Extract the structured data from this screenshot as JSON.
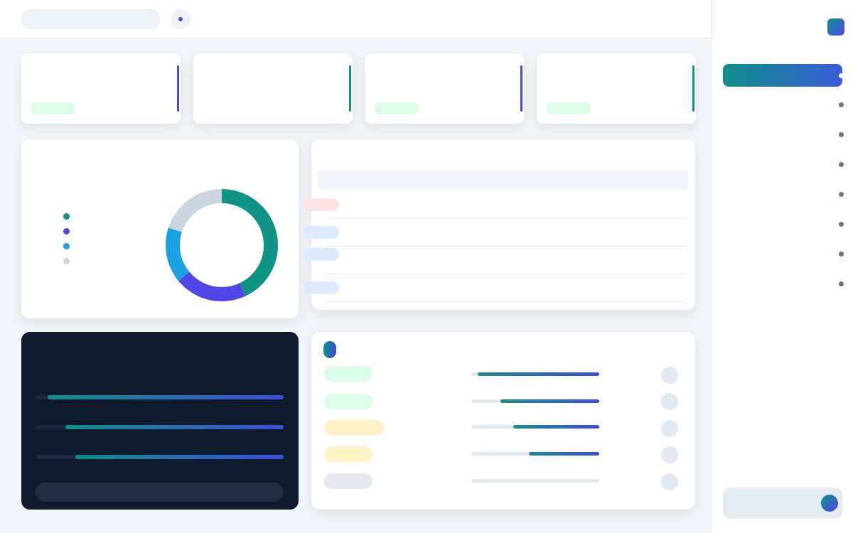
{
  "search": {
    "placeholder": ""
  },
  "sidebar": {
    "brand": "",
    "items": [
      {
        "label": ""
      },
      {
        "label": ""
      },
      {
        "label": ""
      },
      {
        "label": ""
      },
      {
        "label": ""
      },
      {
        "label": ""
      },
      {
        "label": ""
      },
      {
        "label": ""
      }
    ],
    "user": {
      "name": "",
      "role": ""
    }
  },
  "stats": [
    {
      "label": "",
      "value": "",
      "pill": ""
    },
    {
      "label": "",
      "value": "",
      "pill": ""
    },
    {
      "label": "",
      "value": "",
      "pill": ""
    },
    {
      "label": "",
      "value": "",
      "pill": ""
    }
  ],
  "donut": {
    "title": "",
    "center_value": "",
    "center_label": "",
    "legend": [
      {
        "value": "",
        "name": "",
        "color": "#0e9384"
      },
      {
        "value": "",
        "name": "",
        "color": "#4f46e5"
      },
      {
        "value": "",
        "name": "",
        "color": "#1ba0e2"
      },
      {
        "value": "",
        "name": "",
        "color": "#cbd5e1"
      }
    ],
    "segments": [
      {
        "color": "#0e9384",
        "fraction": 0.43
      },
      {
        "color": "#4f46e5",
        "fraction": 0.21
      },
      {
        "color": "#1ba0e2",
        "fraction": 0.16
      },
      {
        "color": "#cbd5e1",
        "fraction": 0.2
      }
    ]
  },
  "table": {
    "title": "",
    "column": "",
    "rows": [
      {
        "tag": "",
        "a": "",
        "b": "",
        "c": ""
      },
      {
        "tag": "",
        "a": "",
        "b": "",
        "c": ""
      },
      {
        "tag": "",
        "a": "",
        "b": "",
        "c": ""
      },
      {
        "tag": "",
        "a": "",
        "b": "",
        "c": ""
      }
    ]
  },
  "dark_panel": {
    "title": "",
    "subtitle": "",
    "bars": [
      {
        "left": "",
        "right": "",
        "value": 0.95
      },
      {
        "left": "",
        "right": "",
        "value": 0.88
      },
      {
        "left": "",
        "right": "",
        "value": 0.84
      }
    ]
  },
  "list": {
    "badge": "",
    "title": "",
    "rows": [
      {
        "chip": "",
        "chip_style": "green",
        "main": "",
        "sub": "",
        "progress": 0.95
      },
      {
        "chip": "",
        "chip_style": "green",
        "main": "",
        "sub": "",
        "progress": 0.77
      },
      {
        "chip": "",
        "chip_style": "amber",
        "main": "",
        "sub": "",
        "progress": 0.67
      },
      {
        "chip": "",
        "chip_style": "amber",
        "main": "",
        "sub": "",
        "progress": 0.55
      },
      {
        "chip": "",
        "chip_style": "gray",
        "main": "",
        "sub": "",
        "progress": 0
      }
    ]
  }
}
